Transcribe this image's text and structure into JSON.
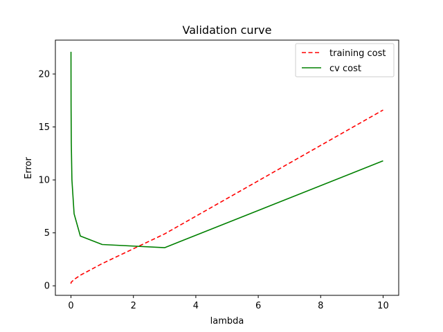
{
  "chart_data": {
    "type": "line",
    "title": "Validation curve",
    "xlabel": "lambda",
    "ylabel": "Error",
    "xlim": [
      -0.5,
      10.5
    ],
    "ylim": [
      -0.9,
      23.2
    ],
    "xticks": [
      0,
      2,
      4,
      6,
      8,
      10
    ],
    "yticks": [
      0,
      5,
      10,
      15,
      20
    ],
    "grid": false,
    "legend_position": "top-right",
    "series": [
      {
        "name": "training cost",
        "color": "#ff0000",
        "style": "dashed",
        "x": [
          0,
          0.001,
          0.003,
          0.01,
          0.03,
          0.1,
          0.3,
          1,
          3,
          10
        ],
        "y": [
          0.2,
          0.25,
          0.3,
          0.35,
          0.4,
          0.6,
          1.0,
          2.1,
          4.9,
          16.6
        ]
      },
      {
        "name": "cv cost",
        "color": "#008000",
        "style": "solid",
        "x": [
          0,
          0.001,
          0.003,
          0.01,
          0.03,
          0.1,
          0.3,
          1,
          3,
          10
        ],
        "y": [
          22.1,
          20.0,
          17.0,
          13.5,
          10.0,
          6.8,
          4.7,
          3.9,
          3.6,
          11.8
        ]
      }
    ]
  }
}
